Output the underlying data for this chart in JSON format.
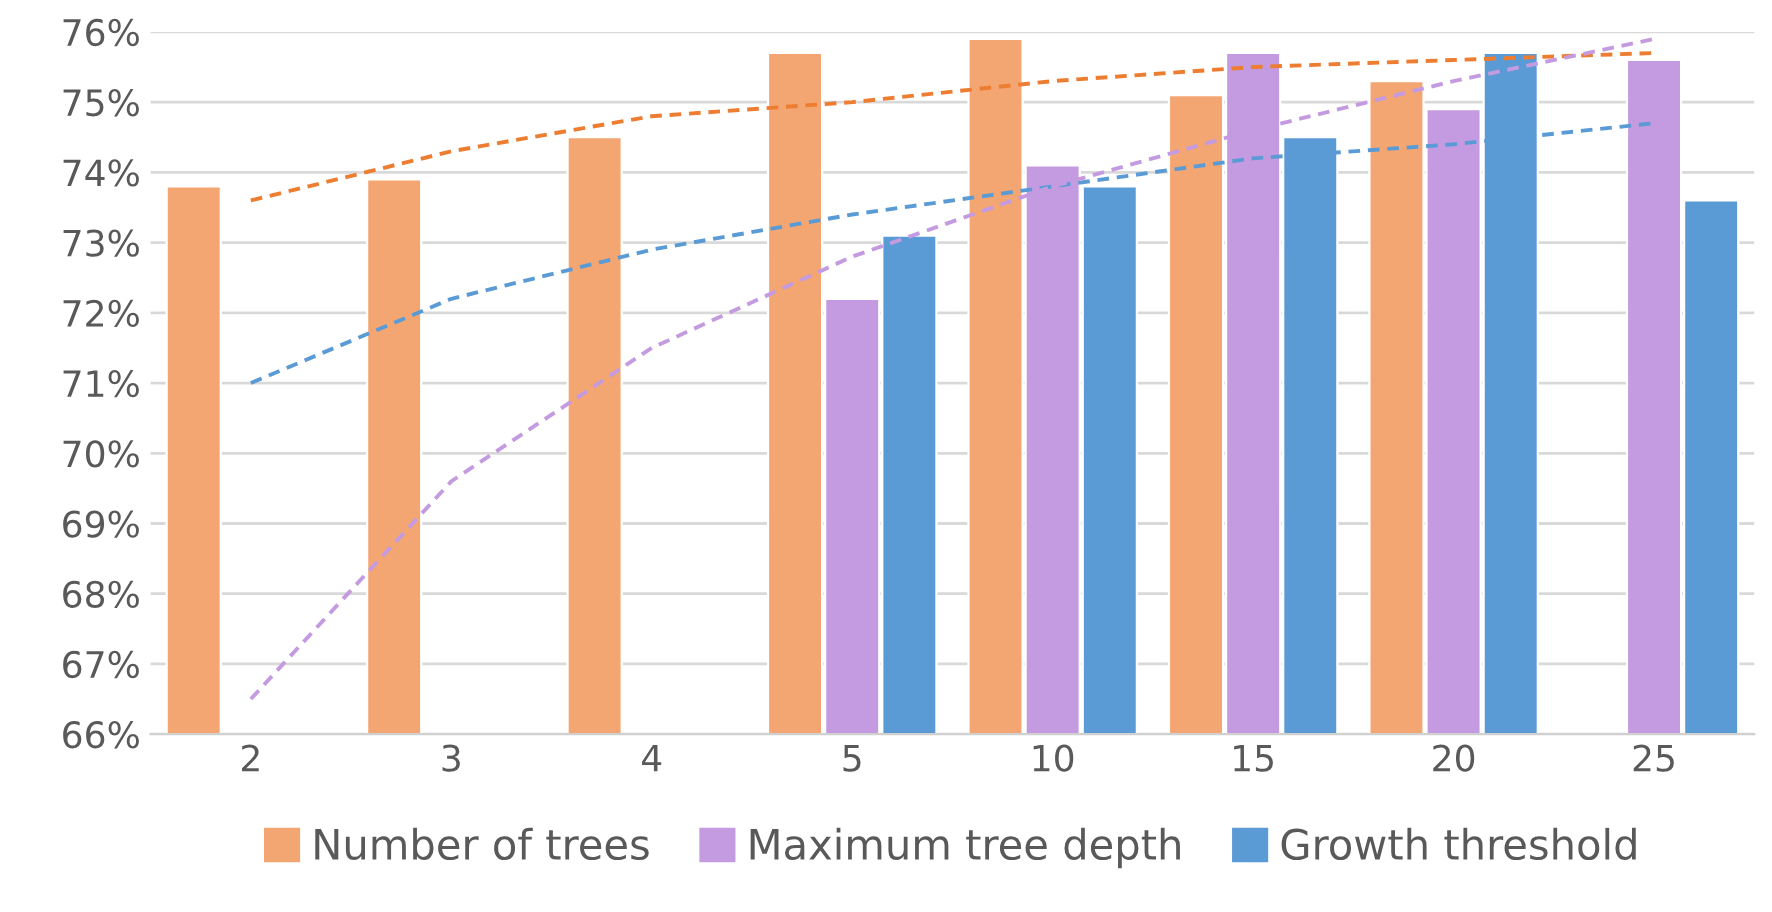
{
  "chart_data": {
    "type": "bar",
    "categories": [
      "2",
      "3",
      "4",
      "5",
      "10",
      "15",
      "20",
      "25"
    ],
    "series": [
      {
        "name": "Number of trees",
        "color": "#f4a672",
        "values": [
          73.8,
          73.9,
          74.5,
          75.7,
          75.9,
          75.1,
          75.3,
          null
        ]
      },
      {
        "name": "Maximum tree depth",
        "color": "#c49be0",
        "values": [
          null,
          null,
          null,
          72.2,
          74.1,
          75.7,
          74.9,
          75.6
        ]
      },
      {
        "name": "Growth threshold",
        "color": "#5b9bd5",
        "values": [
          null,
          null,
          null,
          73.1,
          73.8,
          74.5,
          75.7,
          73.6
        ]
      },
      {
        "type": "line",
        "line_style": "dashed",
        "color": "#ed7d31",
        "values": [
          73.6,
          74.3,
          74.8,
          75.0,
          75.3,
          75.5,
          75.6,
          75.7
        ]
      },
      {
        "type": "line",
        "line_style": "dashed",
        "color": "#5b9bd5",
        "values": [
          71.0,
          72.2,
          72.9,
          73.4,
          73.8,
          74.2,
          74.4,
          74.7
        ]
      },
      {
        "type": "line",
        "line_style": "dashed",
        "color": "#c49be0",
        "values": [
          66.5,
          69.6,
          71.5,
          72.8,
          73.8,
          74.6,
          75.3,
          75.9
        ]
      }
    ],
    "ylim": [
      66,
      76
    ],
    "yticks": [
      {
        "value": 66,
        "label": "66%"
      },
      {
        "value": 67,
        "label": "67%"
      },
      {
        "value": 68,
        "label": "68%"
      },
      {
        "value": 69,
        "label": "69%"
      },
      {
        "value": 70,
        "label": "70%"
      },
      {
        "value": 71,
        "label": "71%"
      },
      {
        "value": 72,
        "label": "72%"
      },
      {
        "value": 73,
        "label": "73%"
      },
      {
        "value": 74,
        "label": "74%"
      },
      {
        "value": 75,
        "label": "75%"
      },
      {
        "value": 76,
        "label": "76%"
      }
    ],
    "grid": "y",
    "legend": "bottom"
  }
}
